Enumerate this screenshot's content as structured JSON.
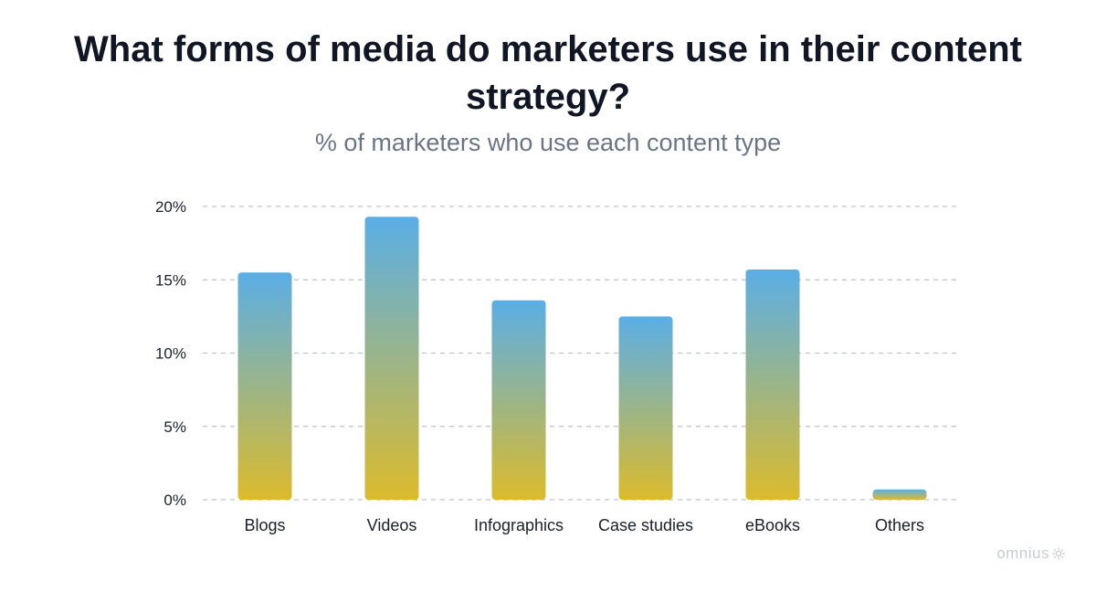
{
  "title": "What forms of media do marketers use in their content strategy?",
  "subtitle": "% of marketers who use each content type",
  "brand": {
    "name": "omnius",
    "icon": "sun-icon",
    "color": "#c7cbd3"
  },
  "colors": {
    "bar_top": "#5aaee6",
    "bar_bottom": "#dcbb2c",
    "grid": "#bfc3ca",
    "text": "#1a1f2b",
    "title": "#111624",
    "subtitle": "#6b7487"
  },
  "chart_data": {
    "type": "bar",
    "categories": [
      "Blogs",
      "Videos",
      "Infographics",
      "Case studies",
      "eBooks",
      "Others"
    ],
    "values": [
      15.5,
      19.3,
      13.6,
      12.5,
      15.7,
      0.7
    ],
    "ylim": [
      0,
      20
    ],
    "yticks": [
      0,
      5,
      10,
      15,
      20
    ],
    "ytick_labels": [
      "0%",
      "5%",
      "10%",
      "15%",
      "20%"
    ],
    "grid": true,
    "grid_style": "dashed",
    "legend": false,
    "xlabel": "",
    "ylabel": ""
  }
}
